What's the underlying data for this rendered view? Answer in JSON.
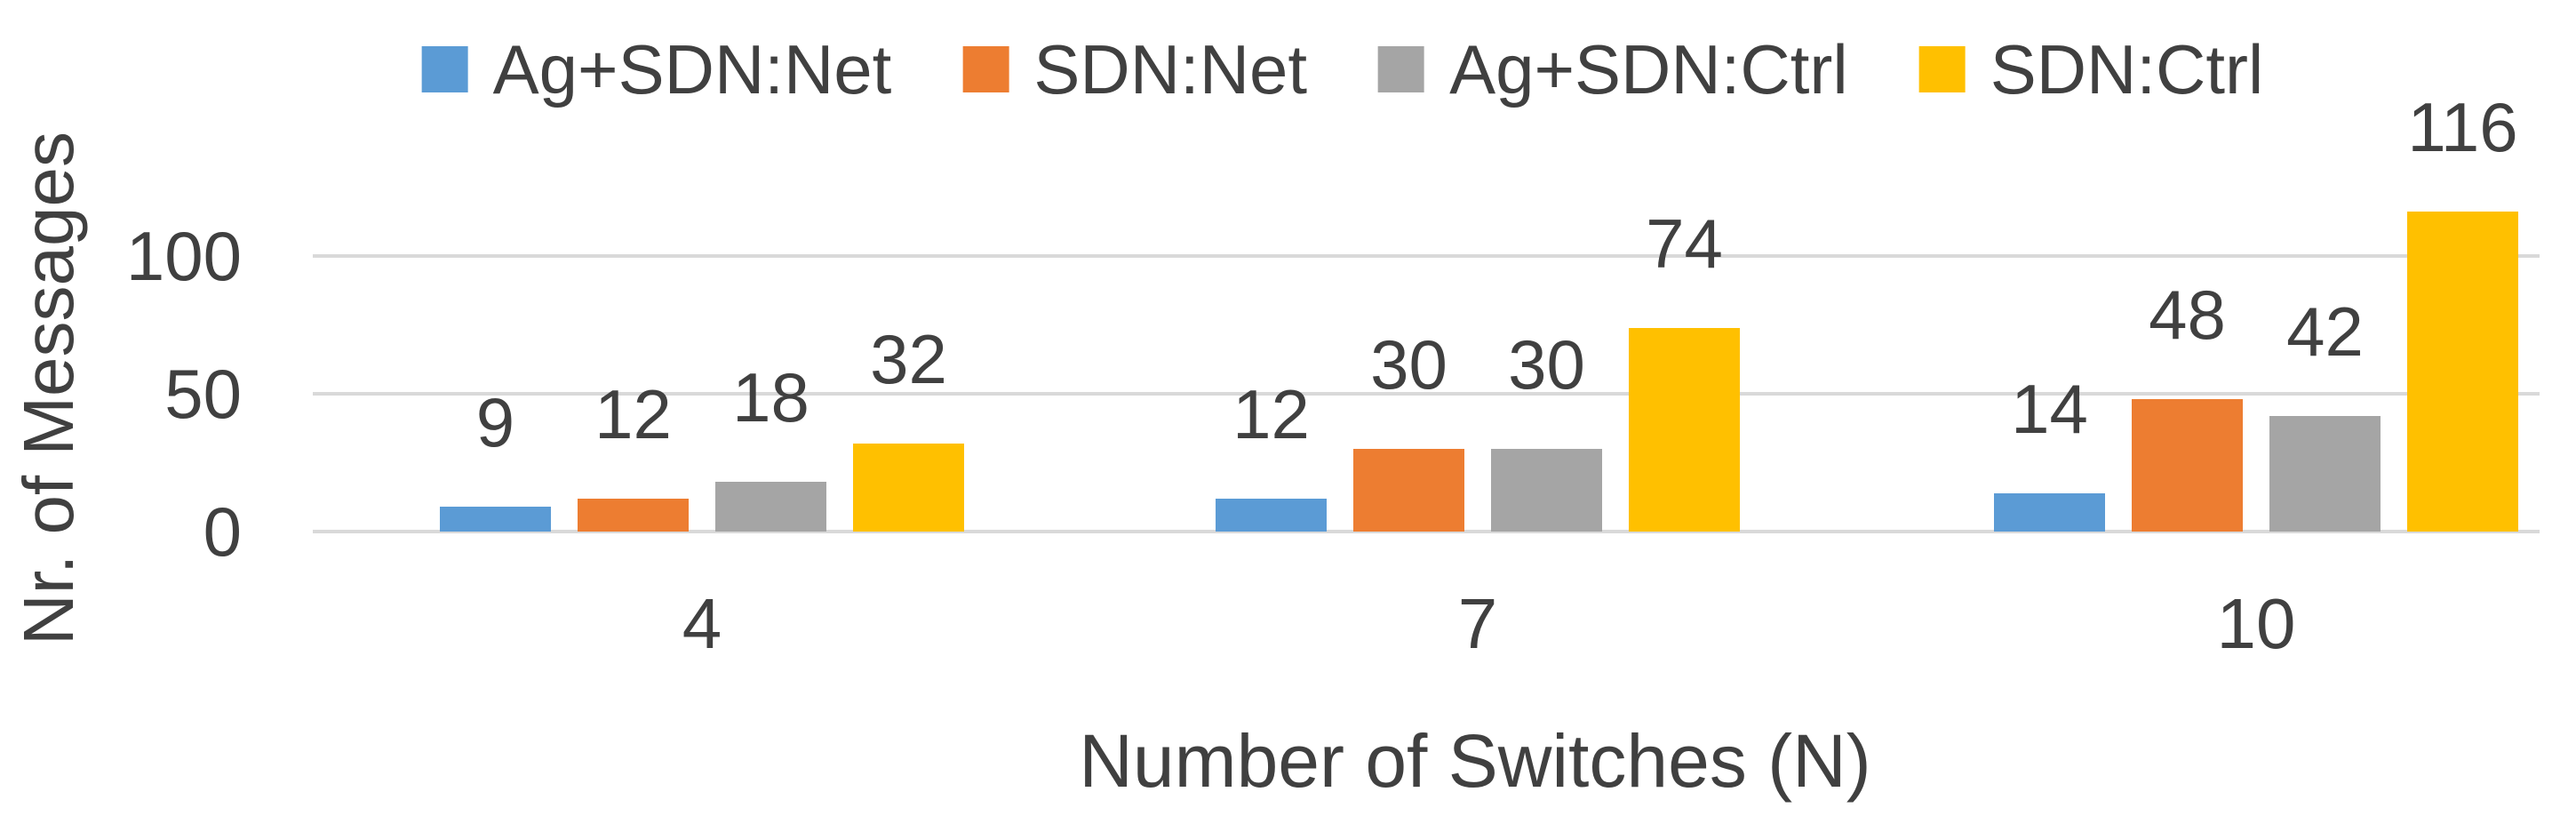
{
  "chart_data": {
    "type": "bar",
    "title": "",
    "xlabel": "Number of Switches (N)",
    "ylabel": "Nr. of Messages",
    "categories": [
      "4",
      "7",
      "10"
    ],
    "series": [
      {
        "name": "Ag+SDN:Net",
        "color": "#5B9BD5",
        "values": [
          9,
          12,
          14
        ]
      },
      {
        "name": "SDN:Net",
        "color": "#ED7D31",
        "values": [
          12,
          30,
          48
        ]
      },
      {
        "name": "Ag+SDN:Ctrl",
        "color": "#A5A5A5",
        "values": [
          18,
          30,
          42
        ]
      },
      {
        "name": "SDN:Ctrl",
        "color": "#FFC000",
        "values": [
          32,
          74,
          116
        ]
      }
    ],
    "y_ticks": [
      0,
      50,
      100
    ],
    "ylim": [
      0,
      130
    ],
    "grid": true,
    "gridline_color": "#D9D9D9",
    "text_color": "#404040",
    "background_color": "#FFFFFF",
    "legend_position": "top",
    "data_labels": true
  }
}
